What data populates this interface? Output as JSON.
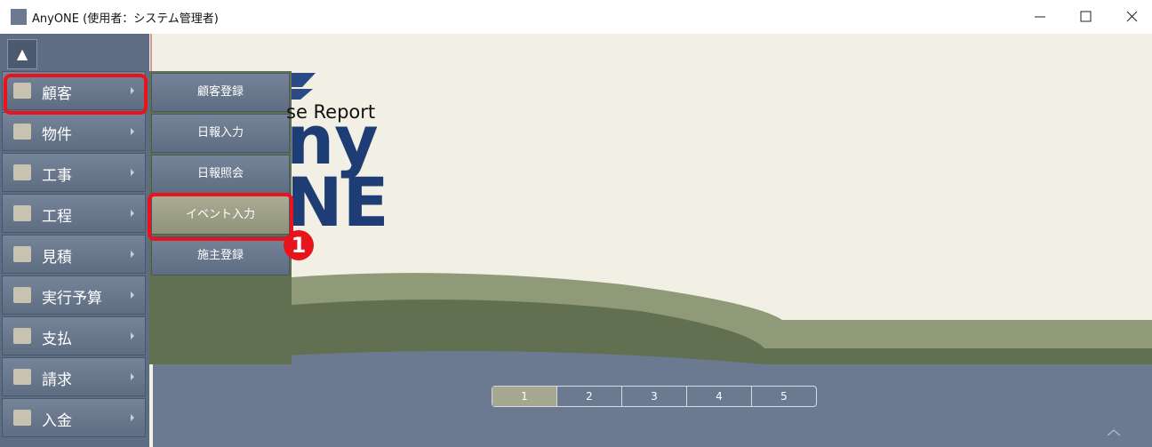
{
  "window": {
    "title": "AnyONE (使用者：システム管理者)"
  },
  "sidebar": {
    "items": [
      "顧客",
      "物件",
      "工事",
      "工程",
      "見積",
      "実行予算",
      "支払",
      "請求",
      "入金"
    ]
  },
  "submenu": {
    "items": [
      "顧客登録",
      "日報入力",
      "日報照会",
      "イベント入力",
      "施主登録"
    ]
  },
  "logo": {
    "tagline": "se Report",
    "line1": "ny",
    "line2": "NE"
  },
  "pagination": {
    "pages": [
      "1",
      "2",
      "3",
      "4",
      "5"
    ]
  },
  "annotation": {
    "step": "1"
  }
}
